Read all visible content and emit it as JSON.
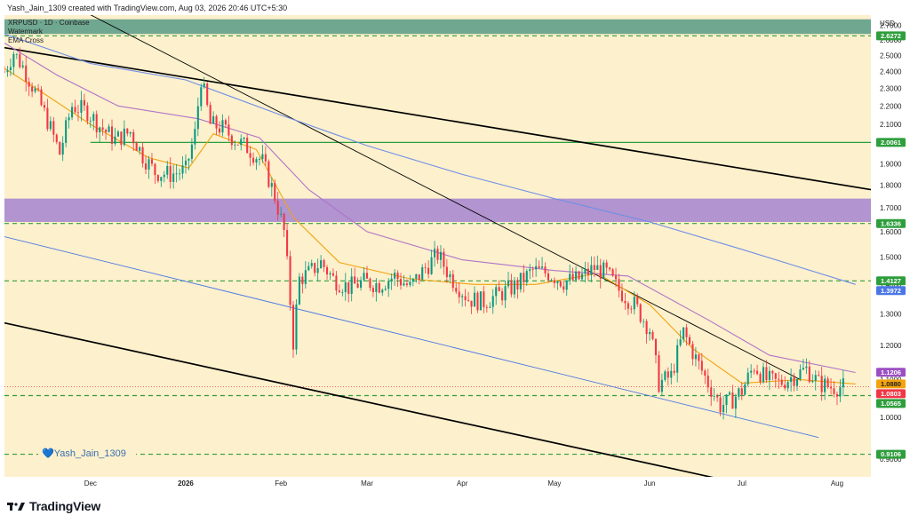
{
  "header": {
    "caption": "Yash_Jain_1309 created with TradingView.com, Aug 03, 2026 20:46 UTC+5:30"
  },
  "legend": {
    "symbol": "XRPUSD · 1D · Coinbase",
    "line2": "Watermark",
    "line3": "EMA Cross"
  },
  "watermark": "💙Yash_Jain_1309",
  "footer": {
    "brand": "TradingView",
    "logo_icon": "tradingview-logo-icon"
  },
  "colors": {
    "background": "#fdf0cc",
    "up": "#089981",
    "down": "#f23645",
    "ema_fast": "#f2a30f",
    "ema_slow": "#b073c9",
    "sma_long": "#6f8ee8",
    "support_green": "#2e9e3c",
    "teal_zone": "#5f9e8a",
    "purple_zone": "#a88ad0",
    "trend_black": "#000000",
    "channel_blue": "#4a76e6"
  },
  "chart_data": {
    "type": "candlestick",
    "currency_label": "USD",
    "y_axis": {
      "scale": "log",
      "ticks": [
        "0.9000",
        "1.0000",
        "1.1000",
        "1.2000",
        "1.3000",
        "1.4000",
        "1.5000",
        "1.6000",
        "1.7000",
        "1.8000",
        "1.9000",
        "2.0000",
        "2.1000",
        "2.2000",
        "2.3000",
        "2.4000",
        "2.5000",
        "2.6000",
        "2.7000"
      ]
    },
    "x_axis": {
      "labels": [
        {
          "label": "Dec",
          "date": "2025-12-01"
        },
        {
          "label": "2026",
          "date": "2026-01-01"
        },
        {
          "label": "Feb",
          "date": "2026-02-01"
        },
        {
          "label": "Mar",
          "date": "2026-03-01"
        },
        {
          "label": "Apr",
          "date": "2026-04-01"
        },
        {
          "label": "May",
          "date": "2026-05-01"
        },
        {
          "label": "Jun",
          "date": "2026-06-01"
        },
        {
          "label": "Jul",
          "date": "2026-07-01"
        },
        {
          "label": "Aug",
          "date": "2026-08-01"
        }
      ],
      "range": [
        "2025-11-03",
        "2026-08-12"
      ]
    },
    "price_path": [
      {
        "date": "2025-11-03",
        "close": 2.4
      },
      {
        "date": "2025-11-06",
        "close": 2.52
      },
      {
        "date": "2025-11-09",
        "close": 2.43
      },
      {
        "date": "2025-11-13",
        "close": 2.28
      },
      {
        "date": "2025-11-17",
        "close": 2.12
      },
      {
        "date": "2025-11-21",
        "close": 1.95
      },
      {
        "date": "2025-11-25",
        "close": 2.2
      },
      {
        "date": "2025-11-30",
        "close": 2.17
      },
      {
        "date": "2025-12-04",
        "close": 2.09
      },
      {
        "date": "2025-12-09",
        "close": 2.02
      },
      {
        "date": "2025-12-14",
        "close": 2.06
      },
      {
        "date": "2025-12-18",
        "close": 1.94
      },
      {
        "date": "2025-12-22",
        "close": 1.86
      },
      {
        "date": "2025-12-27",
        "close": 1.85
      },
      {
        "date": "2026-01-01",
        "close": 1.87
      },
      {
        "date": "2026-01-04",
        "close": 2.05
      },
      {
        "date": "2026-01-06",
        "close": 2.36
      },
      {
        "date": "2026-01-09",
        "close": 2.1
      },
      {
        "date": "2026-01-13",
        "close": 2.08
      },
      {
        "date": "2026-01-17",
        "close": 2.02
      },
      {
        "date": "2026-01-21",
        "close": 1.98
      },
      {
        "date": "2026-01-26",
        "close": 1.91
      },
      {
        "date": "2026-01-30",
        "close": 1.75
      },
      {
        "date": "2026-02-02",
        "close": 1.6
      },
      {
        "date": "2026-02-05",
        "close": 1.21
      },
      {
        "date": "2026-02-07",
        "close": 1.42
      },
      {
        "date": "2026-02-10",
        "close": 1.44
      },
      {
        "date": "2026-02-14",
        "close": 1.48
      },
      {
        "date": "2026-02-18",
        "close": 1.42
      },
      {
        "date": "2026-02-23",
        "close": 1.39
      },
      {
        "date": "2026-02-28",
        "close": 1.41
      },
      {
        "date": "2026-03-05",
        "close": 1.4
      },
      {
        "date": "2026-03-10",
        "close": 1.43
      },
      {
        "date": "2026-03-15",
        "close": 1.39
      },
      {
        "date": "2026-03-20",
        "close": 1.46
      },
      {
        "date": "2026-03-24",
        "close": 1.51
      },
      {
        "date": "2026-03-28",
        "close": 1.43
      },
      {
        "date": "2026-04-03",
        "close": 1.35
      },
      {
        "date": "2026-04-08",
        "close": 1.34
      },
      {
        "date": "2026-04-14",
        "close": 1.37
      },
      {
        "date": "2026-04-19",
        "close": 1.4
      },
      {
        "date": "2026-04-24",
        "close": 1.45
      },
      {
        "date": "2026-04-29",
        "close": 1.44
      },
      {
        "date": "2026-05-04",
        "close": 1.41
      },
      {
        "date": "2026-05-09",
        "close": 1.42
      },
      {
        "date": "2026-05-14",
        "close": 1.46
      },
      {
        "date": "2026-05-18",
        "close": 1.44
      },
      {
        "date": "2026-05-22",
        "close": 1.38
      },
      {
        "date": "2026-05-27",
        "close": 1.33
      },
      {
        "date": "2026-06-01",
        "close": 1.25
      },
      {
        "date": "2026-06-04",
        "close": 1.09
      },
      {
        "date": "2026-06-08",
        "close": 1.11
      },
      {
        "date": "2026-06-12",
        "close": 1.24
      },
      {
        "date": "2026-06-16",
        "close": 1.16
      },
      {
        "date": "2026-06-20",
        "close": 1.09
      },
      {
        "date": "2026-06-24",
        "close": 1.03
      },
      {
        "date": "2026-06-27",
        "close": 1.04
      },
      {
        "date": "2026-07-01",
        "close": 1.07
      },
      {
        "date": "2026-07-05",
        "close": 1.14
      },
      {
        "date": "2026-07-09",
        "close": 1.1
      },
      {
        "date": "2026-07-13",
        "close": 1.09
      },
      {
        "date": "2026-07-18",
        "close": 1.11
      },
      {
        "date": "2026-07-22",
        "close": 1.13
      },
      {
        "date": "2026-07-26",
        "close": 1.09
      },
      {
        "date": "2026-07-30",
        "close": 1.08
      },
      {
        "date": "2026-08-03",
        "close": 1.08
      }
    ],
    "indicators": [
      {
        "color_key": "ema_fast",
        "points": [
          {
            "date": "2025-11-03",
            "value": 2.42
          },
          {
            "date": "2025-11-15",
            "value": 2.28
          },
          {
            "date": "2025-12-01",
            "value": 2.1
          },
          {
            "date": "2025-12-20",
            "value": 1.93
          },
          {
            "date": "2026-01-02",
            "value": 1.88
          },
          {
            "date": "2026-01-10",
            "value": 2.05
          },
          {
            "date": "2026-01-24",
            "value": 1.97
          },
          {
            "date": "2026-02-05",
            "value": 1.66
          },
          {
            "date": "2026-02-20",
            "value": 1.48
          },
          {
            "date": "2026-03-15",
            "value": 1.42
          },
          {
            "date": "2026-04-05",
            "value": 1.4
          },
          {
            "date": "2026-04-25",
            "value": 1.4
          },
          {
            "date": "2026-05-15",
            "value": 1.44
          },
          {
            "date": "2026-06-01",
            "value": 1.33
          },
          {
            "date": "2026-06-15",
            "value": 1.19
          },
          {
            "date": "2026-07-01",
            "value": 1.09
          },
          {
            "date": "2026-07-20",
            "value": 1.1
          },
          {
            "date": "2026-08-07",
            "value": 1.088
          }
        ]
      },
      {
        "color_key": "ema_slow",
        "points": [
          {
            "date": "2025-11-03",
            "value": 2.58
          },
          {
            "date": "2025-11-20",
            "value": 2.38
          },
          {
            "date": "2025-12-10",
            "value": 2.2
          },
          {
            "date": "2026-01-05",
            "value": 2.13
          },
          {
            "date": "2026-01-25",
            "value": 2.03
          },
          {
            "date": "2026-02-10",
            "value": 1.78
          },
          {
            "date": "2026-03-01",
            "value": 1.6
          },
          {
            "date": "2026-04-01",
            "value": 1.49
          },
          {
            "date": "2026-05-01",
            "value": 1.45
          },
          {
            "date": "2026-05-25",
            "value": 1.43
          },
          {
            "date": "2026-06-20",
            "value": 1.28
          },
          {
            "date": "2026-07-10",
            "value": 1.17
          },
          {
            "date": "2026-08-07",
            "value": 1.12
          }
        ]
      },
      {
        "color_key": "sma_long",
        "points": [
          {
            "date": "2025-11-03",
            "value": 2.64
          },
          {
            "date": "2025-12-01",
            "value": 2.45
          },
          {
            "date": "2026-01-01",
            "value": 2.35
          },
          {
            "date": "2026-02-01",
            "value": 2.15
          },
          {
            "date": "2026-03-01",
            "value": 1.99
          },
          {
            "date": "2026-04-01",
            "value": 1.85
          },
          {
            "date": "2026-05-01",
            "value": 1.74
          },
          {
            "date": "2026-06-01",
            "value": 1.64
          },
          {
            "date": "2026-07-01",
            "value": 1.53
          },
          {
            "date": "2026-08-07",
            "value": 1.4
          }
        ]
      }
    ],
    "trendlines": [
      {
        "kind": "descending-resistance-upper",
        "color_key": "trend_black",
        "width": 1.7,
        "from": {
          "date": "2025-11-03",
          "value": 2.55
        },
        "to": {
          "date": "2026-08-12",
          "value": 1.78
        }
      },
      {
        "kind": "descending-resistance-thin",
        "color_key": "trend_black",
        "width": 0.9,
        "from": {
          "date": "2025-11-03",
          "value": 3.1
        },
        "to": {
          "date": "2026-07-20",
          "value": 1.1
        }
      },
      {
        "kind": "descending-support-lower",
        "color_key": "trend_black",
        "width": 1.7,
        "from": {
          "date": "2025-11-03",
          "value": 1.27
        },
        "to": {
          "date": "2026-07-08",
          "value": 0.835
        }
      },
      {
        "kind": "channel-lower",
        "color_key": "channel_blue",
        "width": 0.9,
        "from": {
          "date": "2025-11-03",
          "value": 1.58
        },
        "to": {
          "date": "2026-07-26",
          "value": 0.95
        }
      }
    ],
    "zones": [
      {
        "color_key": "teal_zone",
        "top": 2.74,
        "bottom": 2.64,
        "label": ""
      },
      {
        "color_key": "purple_zone",
        "top": 1.74,
        "bottom": 1.64,
        "label": ""
      }
    ],
    "horizontal_levels": [
      {
        "value": 2.6272,
        "style": "dashed",
        "color_key": "support_green"
      },
      {
        "value": 2.0061,
        "style": "solid",
        "color_key": "support_green",
        "from_date": "2025-12-01"
      },
      {
        "value": 1.6336,
        "style": "dashed",
        "color_key": "support_green"
      },
      {
        "value": 1.4127,
        "style": "dashed",
        "color_key": "support_green"
      },
      {
        "value": 1.0565,
        "style": "dashed",
        "color_key": "support_green"
      },
      {
        "value": 0.9106,
        "style": "dashed",
        "color_key": "support_green"
      }
    ],
    "price_badges": [
      {
        "label": "2.6272",
        "value": 2.6272,
        "bg": "#2e9e3c",
        "fg": "#ffffff"
      },
      {
        "label": "2.0061",
        "value": 2.0061,
        "bg": "#2e9e3c",
        "fg": "#ffffff"
      },
      {
        "label": "1.6336",
        "value": 1.6336,
        "bg": "#2e9e3c",
        "fg": "#ffffff"
      },
      {
        "label": "1.4127",
        "value": 1.4127,
        "bg": "#2e9e3c",
        "fg": "#ffffff"
      },
      {
        "label": "1.3972",
        "value": 1.3972,
        "bg": "#4a76e6",
        "fg": "#ffffff"
      },
      {
        "label": "1.1206",
        "value": 1.1206,
        "bg": "#9b4fc2",
        "fg": "#ffffff"
      },
      {
        "label": "1.0880",
        "value": 1.088,
        "bg": "#f2a30f",
        "fg": "#1f1f1f"
      },
      {
        "label": "1.0803",
        "value": 1.0803,
        "bg": "#f23645",
        "fg": "#ffffff"
      },
      {
        "label": "1.0565",
        "value": 1.0565,
        "bg": "#2e9e3c",
        "fg": "#ffffff"
      },
      {
        "label": "0.9106",
        "value": 0.9106,
        "bg": "#2e9e3c",
        "fg": "#ffffff"
      }
    ],
    "last_price": 1.0803
  }
}
